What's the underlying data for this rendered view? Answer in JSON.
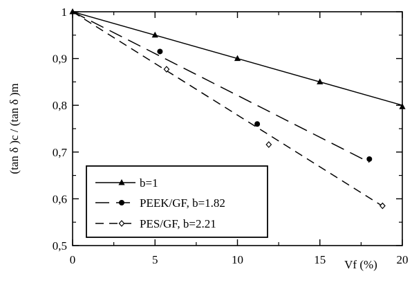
{
  "chart_data": {
    "type": "line",
    "xlabel": "Vf (%)",
    "ylabel": "(tan δ )c / (tan δ )m",
    "xlim": [
      0,
      20
    ],
    "ylim": [
      0.5,
      1.0
    ],
    "x_ticks": [
      "0",
      "5",
      "10",
      "15",
      "20"
    ],
    "y_ticks": [
      "0,5",
      "0,6",
      "0,7",
      "0,8",
      "0,9",
      "1"
    ],
    "grid": false,
    "legend_position": "bottom-left",
    "series": [
      {
        "name": "b=1",
        "line_style": "solid",
        "marker": "filled-triangle",
        "line": [
          [
            0,
            1.0
          ],
          [
            20,
            0.8
          ]
        ],
        "points": [
          [
            0,
            1.0
          ],
          [
            5,
            0.95
          ],
          [
            10,
            0.9
          ],
          [
            15,
            0.85
          ],
          [
            20,
            0.797
          ]
        ]
      },
      {
        "name": "PEEK/GF, b=1.82",
        "line_style": "long-dash",
        "marker": "filled-circle",
        "line": [
          [
            0,
            1.0
          ],
          [
            18,
            0.678
          ]
        ],
        "points": [
          [
            5.3,
            0.915
          ],
          [
            11.2,
            0.76
          ],
          [
            18,
            0.685
          ]
        ]
      },
      {
        "name": "PES/GF, b=2.21",
        "line_style": "dash",
        "marker": "open-diamond",
        "line": [
          [
            0,
            1.0
          ],
          [
            19,
            0.58
          ]
        ],
        "points": [
          [
            5.7,
            0.877
          ],
          [
            11.9,
            0.716
          ],
          [
            18.8,
            0.585
          ]
        ]
      }
    ]
  }
}
